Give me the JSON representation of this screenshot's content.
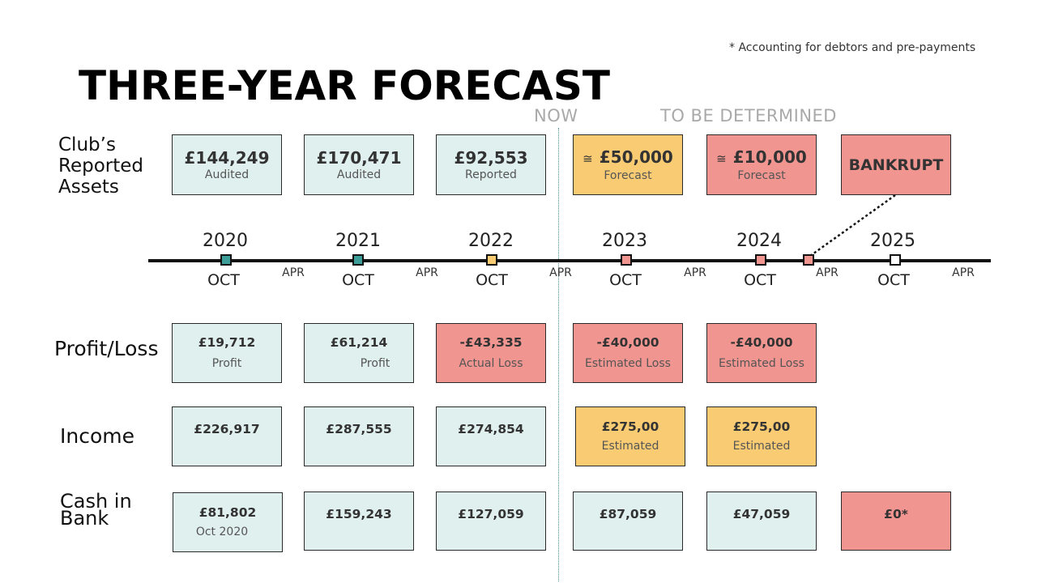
{
  "footnote": "* Accounting for debtors and pre-payments",
  "title": "THREE-YEAR FORECAST",
  "headers": {
    "now": "NOW",
    "tbd": "TO BE DETERMINED"
  },
  "row_labels": {
    "assets": [
      "Club’s",
      "Reported",
      "Assets"
    ],
    "profit_loss": "Profit/Loss",
    "income": "Income",
    "cash": [
      "Cash in",
      "Bank"
    ]
  },
  "assets": [
    {
      "value": "£144,249",
      "note": "Audited",
      "color": "#e0f0ef"
    },
    {
      "value": "£170,471",
      "note": "Audited",
      "color": "#e0f0ef"
    },
    {
      "value": "£92,553",
      "note": "Reported",
      "color": "#e0f0ef"
    },
    {
      "approx": "≅",
      "value": "£50,000",
      "note": "Forecast",
      "color": "#f9cb73"
    },
    {
      "approx": "≅",
      "value": "£10,000",
      "note": "Forecast",
      "color": "#f19590"
    },
    {
      "value": "BANKRUPT",
      "color": "#f19590"
    }
  ],
  "timeline": {
    "years": [
      "2020",
      "2021",
      "2022",
      "2023",
      "2024",
      "2025"
    ],
    "oct_label": "OCT",
    "apr_label": "APR",
    "marker_colors": [
      "#3d9e99",
      "#3d9e99",
      "#f9cb73",
      "#f19590",
      "#f19590",
      "#f19590",
      "#ffffff"
    ]
  },
  "profit_loss": [
    {
      "value": "£19,712",
      "note": "Profit",
      "color": "#e0f0ef"
    },
    {
      "value": "£61,214",
      "note": "Profit",
      "color": "#e0f0ef"
    },
    {
      "value": "-£43,335",
      "note": "Actual Loss",
      "color": "#f19590"
    },
    {
      "value": "-£40,000",
      "note": "Estimated Loss",
      "color": "#f19590"
    },
    {
      "value": "-£40,000",
      "note": "Estimated Loss",
      "color": "#f19590"
    }
  ],
  "income": [
    {
      "value": "£226,917",
      "color": "#e0f0ef"
    },
    {
      "value": "£287,555",
      "color": "#e0f0ef"
    },
    {
      "value": "£274,854",
      "color": "#e0f0ef"
    },
    {
      "value": "£275,00",
      "note": "Estimated",
      "color": "#f9cb73"
    },
    {
      "value": "£275,00",
      "note": "Estimated",
      "color": "#f9cb73"
    }
  ],
  "cash": [
    {
      "value": "£81,802",
      "note": "Oct 2020",
      "color": "#e0f0ef"
    },
    {
      "value": "£159,243",
      "color": "#e0f0ef"
    },
    {
      "value": "£127,059",
      "color": "#e0f0ef"
    },
    {
      "value": "£87,059",
      "color": "#e0f0ef"
    },
    {
      "value": "£47,059",
      "color": "#e0f0ef"
    },
    {
      "value": "£0*",
      "color": "#f19590"
    }
  ]
}
